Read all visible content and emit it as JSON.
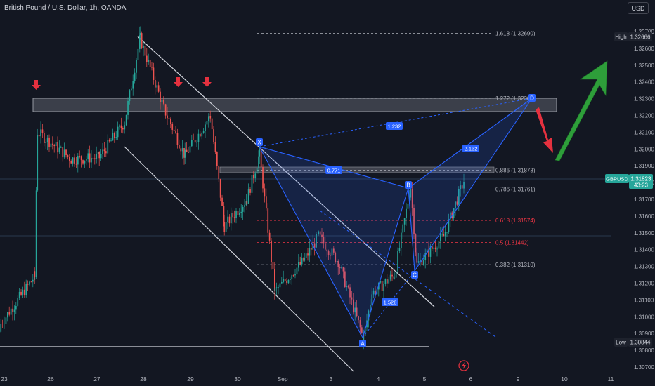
{
  "header": {
    "symbol_title": "British Pound / U.S. Dollar, 1h, OANDA",
    "currency_label": "USD"
  },
  "price_axis": {
    "ticks": [
      "1.32700",
      "1.32600",
      "1.32500",
      "1.32400",
      "1.32300",
      "1.32200",
      "1.32100",
      "1.32000",
      "1.31900",
      "1.31800",
      "1.31700",
      "1.31600",
      "1.31500",
      "1.31400",
      "1.31300",
      "1.31200",
      "1.31100",
      "1.31000",
      "1.30900",
      "1.30800",
      "1.30700"
    ],
    "high_label": "High",
    "high_value": "1.32666",
    "low_label": "Low",
    "low_value": "1.30844",
    "current_symbol": "GBPUSD",
    "current_value": "1.31823",
    "countdown": "43:23"
  },
  "time_axis": {
    "ticks": [
      "23",
      "26",
      "27",
      "28",
      "29",
      "30",
      "Sep",
      "3",
      "4",
      "5",
      "6",
      "9",
      "10",
      "11"
    ]
  },
  "fib_levels": [
    {
      "label": "1.618 (1.32690)",
      "value": 1.3269,
      "color": "#b2b5be"
    },
    {
      "label": "1.272 (1.32302)",
      "value": 1.32302,
      "color": "#b2b5be"
    },
    {
      "label": "0.886 (1.31873)",
      "value": 1.31873,
      "color": "#b2b5be"
    },
    {
      "label": "0.786 (1.31761)",
      "value": 1.31761,
      "color": "#b2b5be"
    },
    {
      "label": "0.618 (1.31574)",
      "value": 1.31574,
      "color": "#f23645"
    },
    {
      "label": "0.5 (1.31442)",
      "value": 1.31442,
      "color": "#f23645"
    },
    {
      "label": "0.382 (1.31310)",
      "value": 1.3131,
      "color": "#b2b5be"
    }
  ],
  "pattern": {
    "points": [
      {
        "label": "X",
        "price": 1.32006
      },
      {
        "label": "A",
        "price": 1.30868
      },
      {
        "label": "B",
        "price": 1.31777
      },
      {
        "label": "C",
        "price": 1.31306
      },
      {
        "label": "D",
        "price": 1.32302
      }
    ],
    "ratios": [
      "0.771",
      "1.232",
      "2.132",
      "1.528"
    ]
  },
  "colors": {
    "background": "#131722",
    "bullish": "#26a69a",
    "bearish": "#ef5350",
    "pattern_line": "#2962ff",
    "green_arrow": "#2e9e3a",
    "red_arrow": "#e5313f"
  },
  "chart_data": {
    "type": "candlestick",
    "title": "British Pound / U.S. Dollar, 1h, OANDA",
    "symbol": "GBPUSD",
    "ylim": [
      1.3065,
      1.3275
    ],
    "x_ticks": [
      "23",
      "26",
      "27",
      "28",
      "29",
      "30",
      "Sep",
      "3",
      "4",
      "5",
      "6",
      "9",
      "10",
      "11"
    ],
    "series": [
      {
        "name": "GBPUSD",
        "values": [
          {
            "x": "23",
            "close": 1.3096
          },
          {
            "x": "23",
            "close": 1.3124
          },
          {
            "x": "26",
            "close": 1.321
          },
          {
            "x": "26",
            "close": 1.3194
          },
          {
            "x": "27",
            "close": 1.3195
          },
          {
            "x": "27",
            "close": 1.3216
          },
          {
            "x": "28",
            "close": 1.3266
          },
          {
            "x": "28",
            "close": 1.3224
          },
          {
            "x": "29",
            "close": 1.3196
          },
          {
            "x": "29",
            "close": 1.322
          },
          {
            "x": "30",
            "close": 1.3154
          },
          {
            "x": "30",
            "close": 1.317
          },
          {
            "x": "30",
            "close": 1.3197
          },
          {
            "x": "Sep",
            "close": 1.3115
          },
          {
            "x": "Sep",
            "close": 1.3134
          },
          {
            "x": "3",
            "close": 1.3148
          },
          {
            "x": "3",
            "close": 1.3133
          },
          {
            "x": "4",
            "close": 1.3087
          },
          {
            "x": "4",
            "close": 1.3114
          },
          {
            "x": "4",
            "close": 1.3125
          },
          {
            "x": "5",
            "close": 1.3177
          },
          {
            "x": "5",
            "close": 1.3131
          },
          {
            "x": "5",
            "close": 1.3148
          },
          {
            "x": "6",
            "close": 1.31823
          }
        ]
      }
    ],
    "annotations": {
      "resistance_zone": [
        1.3222,
        1.3229
      ],
      "zone_886": [
        1.3186,
        1.3189
      ],
      "low_support": 1.30844,
      "fib_levels": [
        1.3269,
        1.32302,
        1.31873,
        1.31761,
        1.31574,
        1.31442,
        1.3131
      ]
    },
    "grid": false,
    "legend": "none"
  }
}
